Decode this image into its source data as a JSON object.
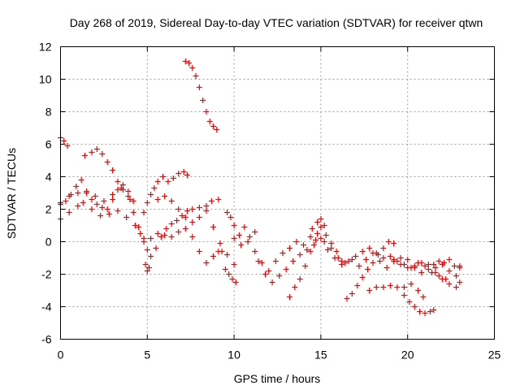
{
  "chart_data": {
    "type": "scatter",
    "title": "Day 268 of 2019, Sidereal Day-to-day VTEC variation (SDTVAR) for receiver qtwn",
    "xlabel": "GPS time / hours",
    "ylabel": "SDTVAR / TECUs",
    "xlim": [
      0,
      25
    ],
    "ylim": [
      -6,
      12
    ],
    "xticks": [
      "0",
      "5",
      "10",
      "15",
      "20",
      "25"
    ],
    "yticks": [
      "-6",
      "-4",
      "-2",
      "0",
      "2",
      "4",
      "6",
      "8",
      "10",
      "12"
    ],
    "grid": true,
    "marker": "+",
    "color": "#ff0000",
    "series": [
      {
        "name": "track-1",
        "x": [
          0.0,
          0.2,
          0.4
        ],
        "y": [
          6.4,
          6.2,
          5.9
        ]
      },
      {
        "name": "track-2",
        "x": [
          0.0,
          0.5,
          1.0,
          1.5,
          2.0,
          2.5,
          3.0,
          3.5,
          4.0
        ],
        "y": [
          2.4,
          2.8,
          3.0,
          3.0,
          2.8,
          2.5,
          2.9,
          3.3,
          2.6
        ]
      },
      {
        "name": "track-3",
        "x": [
          0.0,
          0.5,
          1.0,
          1.3,
          1.8,
          2.3,
          2.8,
          3.3,
          3.8,
          4.3,
          4.6
        ],
        "y": [
          1.4,
          1.8,
          2.2,
          2.4,
          2.0,
          1.6,
          1.7,
          1.9,
          1.5,
          1.0,
          0.5
        ]
      },
      {
        "name": "track-4",
        "x": [
          0.0,
          0.3,
          0.6,
          0.9,
          1.2,
          1.5,
          1.8,
          2.1,
          2.4,
          2.7,
          3.0,
          3.3,
          3.6,
          3.9,
          4.2
        ],
        "y": [
          2.3,
          2.5,
          2.9,
          3.4,
          3.8,
          3.1,
          2.6,
          2.3,
          2.1,
          2.0,
          2.6,
          3.2,
          3.5,
          3.1,
          2.5
        ]
      },
      {
        "name": "track-5",
        "x": [
          1.4,
          1.8,
          2.1,
          2.4,
          2.7,
          3.0,
          3.3,
          3.6,
          3.9,
          4.2,
          4.5,
          4.8
        ],
        "y": [
          5.3,
          5.5,
          5.7,
          5.4,
          4.9,
          4.4,
          3.7,
          3.2,
          2.8,
          1.8,
          0.9,
          0.2
        ]
      },
      {
        "name": "track-6",
        "x": [
          4.8,
          5.0,
          5.2,
          5.5,
          5.8,
          6.1,
          6.4,
          6.7,
          7.0,
          7.3,
          7.6,
          8.0,
          8.4,
          8.7,
          9.1
        ],
        "y": [
          0.0,
          -0.5,
          -0.9,
          -0.4,
          0.3,
          0.8,
          1.1,
          1.3,
          1.6,
          1.9,
          2.0,
          2.1,
          2.2,
          2.5,
          2.6
        ]
      },
      {
        "name": "track-7",
        "x": [
          4.8,
          5.0,
          5.2,
          5.4,
          5.6,
          5.9,
          6.2,
          6.5,
          6.8,
          7.1,
          7.3
        ],
        "y": [
          1.8,
          2.4,
          2.9,
          3.3,
          3.7,
          4.0,
          3.7,
          3.9,
          4.2,
          4.3,
          4.1
        ]
      },
      {
        "name": "track-8",
        "x": [
          4.9,
          5.0,
          5.1
        ],
        "y": [
          -1.4,
          -1.8,
          -1.6
        ]
      },
      {
        "name": "track-9",
        "x": [
          5.2,
          5.6,
          6.0,
          6.4,
          6.8,
          7.2,
          7.6,
          8.0,
          8.4,
          8.8,
          9.1
        ],
        "y": [
          0.2,
          0.5,
          0.4,
          0.3,
          0.6,
          0.8,
          0.3,
          -0.6,
          -1.3,
          -0.9,
          -0.6
        ]
      },
      {
        "name": "track-10",
        "x": [
          5.6,
          6.0,
          6.4,
          6.8,
          7.2,
          7.6,
          8.0,
          8.4,
          8.8,
          9.2,
          9.6,
          10.0
        ],
        "y": [
          2.6,
          2.8,
          2.5,
          2.0,
          1.5,
          1.2,
          1.5,
          1.9,
          0.9,
          -0.1,
          -0.8,
          -1.4
        ]
      },
      {
        "name": "track-11",
        "x": [
          7.2,
          7.4,
          7.6,
          7.8,
          8.0,
          8.2,
          8.4,
          8.6,
          8.8,
          9.0
        ],
        "y": [
          11.1,
          11.0,
          10.7,
          10.2,
          9.5,
          8.7,
          8.0,
          7.4,
          7.1,
          6.9
        ]
      },
      {
        "name": "track-12",
        "x": [
          9.3,
          9.5,
          9.7,
          9.9,
          10.1
        ],
        "y": [
          -0.6,
          -1.7,
          -2.0,
          -2.3,
          -2.5
        ]
      },
      {
        "name": "track-13",
        "x": [
          9.6,
          9.8,
          10.0,
          10.3,
          10.6,
          10.9,
          11.2
        ],
        "y": [
          1.8,
          1.5,
          1.0,
          0.4,
          0.9,
          0.3,
          0.6
        ]
      },
      {
        "name": "track-14",
        "x": [
          10.0,
          10.4,
          10.8,
          11.2,
          11.6,
          12.0,
          12.4,
          12.8,
          13.2,
          13.6,
          14.0,
          14.4,
          14.8,
          15.2,
          15.6,
          16.0,
          16.4,
          16.8,
          17.2,
          17.6,
          18.0,
          18.4,
          18.8,
          19.2,
          19.6,
          20.0,
          20.4,
          20.8,
          21.2,
          21.6,
          22.0,
          22.4,
          22.8,
          23.0
        ],
        "y": [
          0.2,
          -0.2,
          0.0,
          -0.6,
          -1.3,
          -1.8,
          -1.2,
          -0.7,
          -0.4,
          0.0,
          -0.2,
          0.3,
          0.5,
          0.0,
          -0.4,
          -1.0,
          -1.3,
          -1.1,
          -1.5,
          -1.1,
          -0.7,
          -1.2,
          -1.6,
          -1.1,
          -1.0,
          -1.1,
          -1.6,
          -1.9,
          -1.7,
          -1.6,
          -1.4,
          -1.8,
          -2.1,
          -1.5
        ]
      },
      {
        "name": "track-15",
        "x": [
          11.4,
          11.8,
          12.2,
          12.6,
          13.0,
          13.4,
          13.8,
          14.2,
          14.6,
          15.0,
          15.4,
          15.8,
          16.2,
          16.6,
          17.0,
          17.4,
          17.8,
          18.2,
          18.6,
          19.0,
          19.4,
          19.8,
          20.2,
          20.6,
          21.0,
          21.4,
          21.8,
          22.2
        ],
        "y": [
          -1.2,
          -2.0,
          -2.5,
          -2.1,
          -1.7,
          -1.2,
          -0.8,
          -0.5,
          -0.2,
          0.2,
          -0.5,
          -1.0,
          -1.4,
          -1.2,
          -0.9,
          -0.6,
          -0.4,
          -0.7,
          -1.0,
          -0.9,
          -1.2,
          -1.4,
          -1.6,
          -1.3,
          -1.5,
          -1.9,
          -2.1,
          -2.3
        ]
      },
      {
        "name": "track-16",
        "x": [
          13.2,
          13.5,
          13.8,
          14.1,
          14.4,
          14.7,
          15.0,
          15.3,
          15.6,
          15.9,
          16.2
        ],
        "y": [
          -3.4,
          -2.8,
          -2.3,
          -1.5,
          -0.6,
          0.1,
          0.9,
          0.4,
          -0.1,
          -0.6,
          -1.2
        ]
      },
      {
        "name": "track-17",
        "x": [
          14.5,
          14.8,
          15.0,
          15.2
        ],
        "y": [
          0.8,
          1.2,
          1.4,
          1.0
        ]
      },
      {
        "name": "track-18",
        "x": [
          16.5,
          16.8,
          17.1,
          17.4,
          17.7,
          18.0,
          18.3,
          18.6,
          18.9,
          19.2
        ],
        "y": [
          -3.5,
          -3.2,
          -2.7,
          -2.2,
          -1.7,
          -1.3,
          -0.8,
          -0.4,
          0.0,
          -0.1
        ]
      },
      {
        "name": "track-19",
        "x": [
          17.8,
          18.2,
          18.6,
          19.0,
          19.4,
          19.8,
          20.2,
          20.6,
          20.9
        ],
        "y": [
          -3.0,
          -2.8,
          -2.8,
          -2.7,
          -2.8,
          -2.8,
          -2.6,
          -3.0,
          -3.4
        ]
      },
      {
        "name": "track-20",
        "x": [
          19.8,
          20.1,
          20.4,
          20.7,
          21.0,
          21.3,
          21.5
        ],
        "y": [
          -3.3,
          -3.7,
          -4.0,
          -4.3,
          -4.4,
          -4.3,
          -4.2
        ]
      },
      {
        "name": "track-21",
        "x": [
          19.2,
          19.6,
          20.0,
          20.4,
          20.8,
          21.2,
          21.6,
          22.0,
          22.4,
          22.8,
          23.0
        ],
        "y": [
          -1.2,
          -1.4,
          -1.6,
          -1.5,
          -1.3,
          -1.4,
          -1.9,
          -2.3,
          -2.6,
          -2.8,
          -2.5
        ]
      },
      {
        "name": "track-22",
        "x": [
          21.5,
          21.8,
          22.1,
          22.4,
          22.7,
          23.0
        ],
        "y": [
          -1.4,
          -1.2,
          -1.3,
          -1.1,
          -1.5,
          -1.6
        ]
      }
    ]
  }
}
